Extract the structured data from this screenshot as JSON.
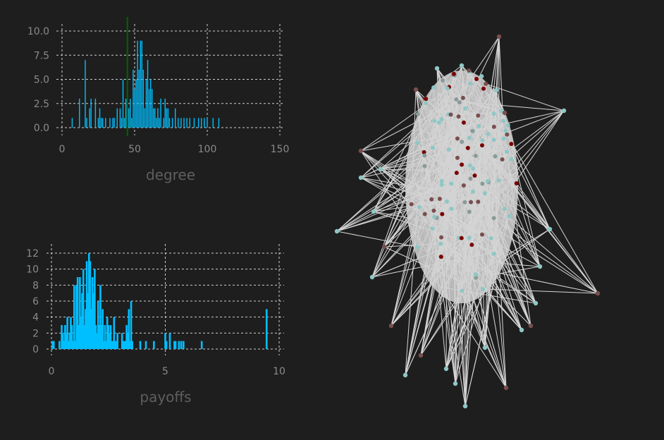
{
  "chart_data": [
    {
      "type": "bar",
      "xlabel": "degree",
      "ylabel": "",
      "xlim": [
        0,
        150
      ],
      "ylim": [
        0,
        10
      ],
      "xticks": [
        "0",
        "50",
        "100",
        "150"
      ],
      "yticks": [
        "0.0",
        "2.5",
        "5.0",
        "7.5",
        "10.0"
      ],
      "bar_color": "#00bfff",
      "marker_line": {
        "x": 45,
        "color": "#006400"
      },
      "x": [
        7,
        12,
        16,
        17,
        19,
        20,
        23,
        25,
        26,
        27,
        28,
        30,
        33,
        35,
        36,
        38,
        40,
        41,
        42,
        43,
        44,
        45,
        46,
        47,
        48,
        49,
        50,
        51,
        52,
        53,
        54,
        55,
        56,
        57,
        58,
        59,
        60,
        61,
        62,
        63,
        64,
        65,
        66,
        67,
        68,
        70,
        71,
        72,
        73,
        74,
        76,
        78,
        80,
        82,
        84,
        86,
        88,
        91,
        94,
        96,
        98,
        100,
        104,
        108
      ],
      "values": [
        1,
        3,
        7,
        1,
        2,
        3,
        3,
        1,
        2,
        1,
        1,
        1,
        1,
        1,
        1,
        2,
        2,
        1,
        5,
        1,
        3,
        5,
        2,
        3,
        1,
        6,
        4,
        5,
        9,
        6,
        9,
        9,
        6,
        2,
        5,
        7,
        4,
        5,
        4,
        2,
        2,
        1,
        2,
        1,
        3,
        1,
        3,
        2,
        2,
        1,
        1,
        2,
        1,
        1,
        1,
        1,
        1,
        1,
        1,
        1,
        1,
        1,
        1,
        1
      ]
    },
    {
      "type": "bar",
      "xlabel": "payoffs",
      "ylabel": "",
      "xlim": [
        0,
        10
      ],
      "ylim": [
        0,
        12
      ],
      "xticks": [
        "0",
        "5",
        "10"
      ],
      "yticks": [
        "0",
        "2",
        "4",
        "6",
        "8",
        "10",
        "12"
      ],
      "bar_color": "#00bfff",
      "x": [
        0.05,
        0.1,
        0.35,
        0.45,
        0.5,
        0.55,
        0.6,
        0.65,
        0.7,
        0.75,
        0.8,
        0.85,
        0.9,
        0.95,
        1.0,
        1.05,
        1.1,
        1.15,
        1.2,
        1.25,
        1.3,
        1.35,
        1.4,
        1.45,
        1.5,
        1.55,
        1.6,
        1.65,
        1.7,
        1.75,
        1.8,
        1.85,
        1.9,
        1.95,
        2.0,
        2.05,
        2.1,
        2.15,
        2.2,
        2.25,
        2.3,
        2.35,
        2.4,
        2.45,
        2.5,
        2.55,
        2.6,
        2.65,
        2.7,
        2.75,
        2.8,
        2.85,
        2.9,
        3.1,
        3.15,
        3.2,
        3.25,
        3.3,
        3.35,
        3.4,
        3.45,
        3.5,
        3.55,
        3.9,
        4.15,
        4.5,
        5.0,
        5.05,
        5.2,
        5.4,
        5.45,
        5.6,
        5.7,
        5.8,
        6.6,
        9.45
      ],
      "values": [
        1,
        1,
        1,
        3,
        2,
        1,
        3,
        2,
        4,
        1,
        2,
        4,
        3,
        1,
        8,
        1,
        8,
        9,
        3,
        9,
        4,
        7,
        10,
        3,
        5,
        11,
        7,
        12,
        11,
        5,
        9,
        7,
        10,
        3,
        2,
        6,
        3,
        8,
        3,
        5,
        1,
        3,
        1,
        4,
        3,
        2,
        3,
        1,
        1,
        4,
        1,
        1,
        2,
        2,
        1,
        1,
        1,
        3,
        2,
        5,
        1,
        6,
        1,
        1,
        1,
        1,
        2,
        1,
        2,
        1,
        1,
        1,
        1,
        1,
        1,
        5
      ]
    },
    {
      "type": "network",
      "title": "",
      "node_colors": {
        "teal": "#8ec7c5",
        "brown": "#7a4e4e",
        "darkred": "#7a0000",
        "gray": "#8a9a9a"
      },
      "edge_color": "#d6d6d6"
    }
  ]
}
